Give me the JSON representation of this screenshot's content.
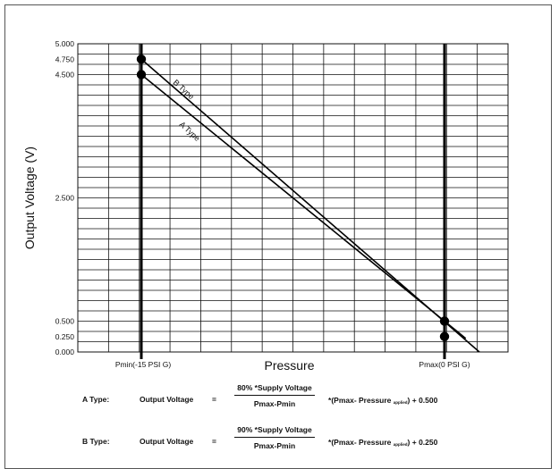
{
  "chart_data": {
    "type": "line",
    "title": "",
    "xlabel": "Pressure",
    "ylabel": "Output Voltage (V)",
    "ylim": [
      0,
      5
    ],
    "y_ticks": [
      "5.000",
      "4.750",
      "4.500",
      "2.500",
      "0.500",
      "0.250",
      "0.000"
    ],
    "x_ticks": [
      "Pmin(-15 PSI G)",
      "Pmax(0 PSI G)"
    ],
    "grid": true,
    "series": [
      {
        "name": "B Type",
        "x": [
          0,
          1
        ],
        "y": [
          4.75,
          0.25
        ]
      },
      {
        "name": "A Type",
        "x": [
          0,
          1
        ],
        "y": [
          4.5,
          0.5
        ]
      }
    ],
    "markers": [
      {
        "series": "B Type",
        "x": 0,
        "y": 4.75
      },
      {
        "series": "A Type",
        "x": 0,
        "y": 4.5
      },
      {
        "series": "A Type",
        "x": 1,
        "y": 0.5
      },
      {
        "series": "B Type",
        "x": 1,
        "y": 0.25
      }
    ]
  },
  "formulas": [
    {
      "label": "A Type:",
      "lhs": "Output Voltage",
      "eq": "=",
      "numerator": "80% *Supply Voltage",
      "denominator": "Pmax-Pmin",
      "times": "*",
      "paren_open": "(Pmax-  Pressure",
      "subscript": "applied",
      "paren_close": ") + 0.500"
    },
    {
      "label": "B Type:",
      "lhs": "Output Voltage",
      "eq": "=",
      "numerator": "90% *Supply Voltage",
      "denominator": "Pmax-Pmin",
      "times": "*",
      "paren_open": "(Pmax-  Pressure",
      "subscript": "applied",
      "paren_close": ") + 0.250"
    }
  ]
}
